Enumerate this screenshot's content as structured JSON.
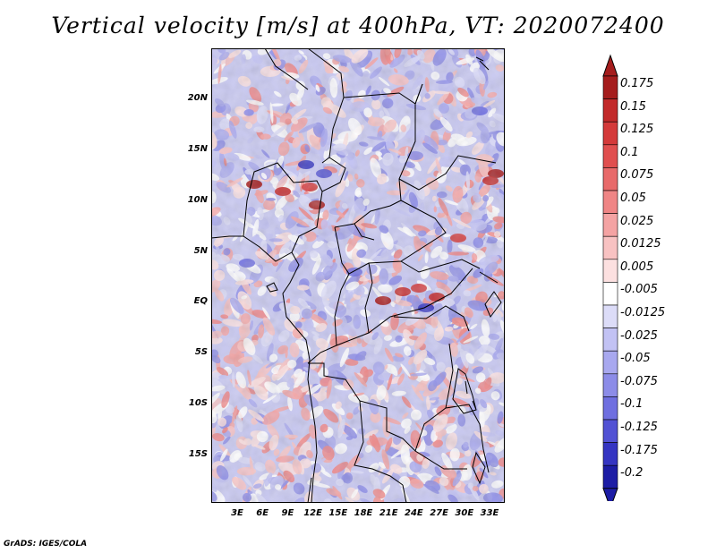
{
  "title": "Vertical velocity [m/s] at 400hPa, VT: 2020072400",
  "credit": "GrADS: IGES/COLA",
  "lat_labels": [
    "20N",
    "15N",
    "10N",
    "5N",
    "EQ",
    "5S",
    "10S",
    "15S"
  ],
  "lon_labels": [
    "3E",
    "6E",
    "9E",
    "12E",
    "15E",
    "18E",
    "21E",
    "24E",
    "27E",
    "30E",
    "33E"
  ],
  "colorbar": {
    "labels": [
      "0.175",
      "0.15",
      "0.125",
      "0.1",
      "0.075",
      "0.05",
      "0.025",
      "0.0125",
      "0.005",
      "-0.005",
      "-0.0125",
      "-0.025",
      "-0.05",
      "-0.075",
      "-0.1",
      "-0.125",
      "-0.175",
      "-0.2"
    ],
    "colors": [
      "#a51d1d",
      "#c22a2a",
      "#d43a3a",
      "#e04f4f",
      "#e86a6a",
      "#ef8585",
      "#f4a3a3",
      "#f8c2c2",
      "#fce0e0",
      "#ffffff",
      "#dcdcf8",
      "#c2c2f4",
      "#a8a8ef",
      "#8c8ce8",
      "#6f6fe0",
      "#5252d4",
      "#3535c2",
      "#1d1da5"
    ],
    "top_color": "#a51d1d",
    "bottom_color": "#1d1da5"
  },
  "map": {
    "lon_range": [
      0,
      35
    ],
    "lat_range": [
      -20,
      25
    ],
    "background": "#c9c9f2"
  }
}
